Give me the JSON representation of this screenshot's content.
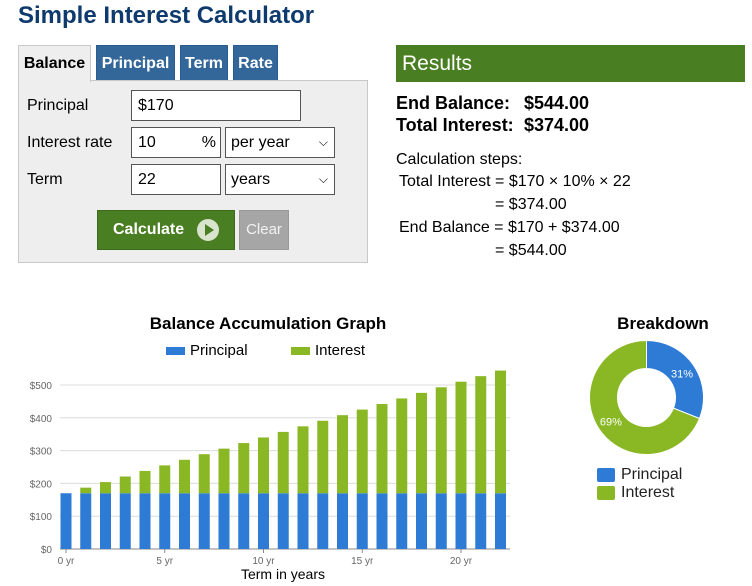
{
  "page_title": "Simple Interest Calculator",
  "tabs": [
    {
      "label": "Balance",
      "active": true
    },
    {
      "label": "Principal",
      "active": false
    },
    {
      "label": "Term",
      "active": false
    },
    {
      "label": "Rate",
      "active": false
    }
  ],
  "form": {
    "principal_label": "Principal",
    "principal_value": "$170",
    "rate_label": "Interest rate",
    "rate_value": "10",
    "rate_unit": "%",
    "rate_period": "per year",
    "term_label": "Term",
    "term_value": "22",
    "term_unit": "years",
    "calculate_label": "Calculate",
    "clear_label": "Clear"
  },
  "results": {
    "header": "Results",
    "end_balance_label": "End Balance:",
    "end_balance_value": "$544.00",
    "total_interest_label": "Total Interest:",
    "total_interest_value": "$374.00",
    "steps_title": "Calculation steps:",
    "step1": "Total Interest = $170 × 10% × 22",
    "step2": "= $374.00",
    "step3": "End Balance = $170 + $374.00",
    "step4": "= $544.00"
  },
  "colors": {
    "principal": "#2e7bd6",
    "interest": "#8ab825",
    "green": "#4a7e22",
    "tab_blue": "#336699"
  },
  "chart_data": [
    {
      "type": "bar",
      "stacked": true,
      "title": "Balance Accumulation Graph",
      "xlabel": "Term in years",
      "ylabel": "",
      "categories": [
        0,
        1,
        2,
        3,
        4,
        5,
        6,
        7,
        8,
        9,
        10,
        11,
        12,
        13,
        14,
        15,
        16,
        17,
        18,
        19,
        20,
        21,
        22
      ],
      "x_tick_labels": [
        "0 yr",
        "5 yr",
        "10 yr",
        "15 yr",
        "20 yr"
      ],
      "y_tick_labels": [
        "$0",
        "$100",
        "$200",
        "$300",
        "$400",
        "$500"
      ],
      "ylim": [
        0,
        550
      ],
      "legend": "top",
      "grid": true,
      "series": [
        {
          "name": "Principal",
          "values": [
            170,
            170,
            170,
            170,
            170,
            170,
            170,
            170,
            170,
            170,
            170,
            170,
            170,
            170,
            170,
            170,
            170,
            170,
            170,
            170,
            170,
            170,
            170
          ]
        },
        {
          "name": "Interest",
          "values": [
            0,
            17,
            34,
            51,
            68,
            85,
            102,
            119,
            136,
            153,
            170,
            187,
            204,
            221,
            238,
            255,
            272,
            289,
            306,
            323,
            340,
            357,
            374
          ]
        }
      ]
    },
    {
      "type": "pie",
      "title": "Breakdown",
      "donut": true,
      "legend": "bottom",
      "series": [
        {
          "name": "Principal",
          "value": 31,
          "label": "31%"
        },
        {
          "name": "Interest",
          "value": 69,
          "label": "69%"
        }
      ]
    }
  ]
}
